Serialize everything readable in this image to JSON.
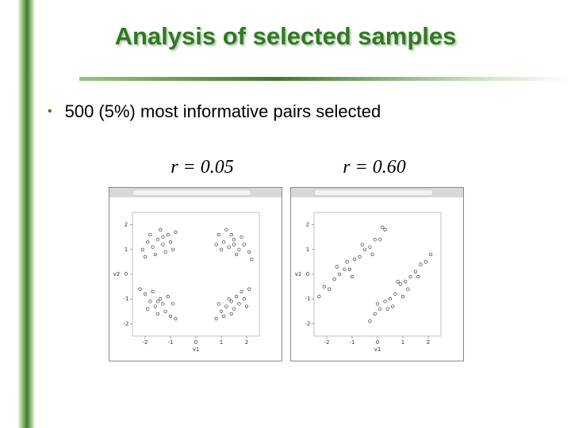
{
  "header": {
    "title": "Analysis of selected samples"
  },
  "bullet": "500 (5%) most informative pairs selected",
  "plots": [
    {
      "label": "r = 0.05",
      "xlim": [
        -2.5,
        2.5
      ],
      "ylim": [
        -2.5,
        2.5
      ],
      "xticks": [
        -2,
        -1,
        0,
        1,
        2
      ],
      "yticks": [
        -2,
        -1,
        0,
        1,
        2
      ],
      "xlabel": "v1",
      "ylabel": "v2",
      "points": [
        [
          -2.1,
          1.0
        ],
        [
          -1.9,
          1.3
        ],
        [
          -1.7,
          1.1
        ],
        [
          -1.5,
          1.4
        ],
        [
          -1.3,
          1.2
        ],
        [
          -1.1,
          1.6
        ],
        [
          -1.6,
          0.8
        ],
        [
          -1.2,
          0.9
        ],
        [
          -1.0,
          1.3
        ],
        [
          -0.8,
          1.7
        ],
        [
          -1.4,
          1.8
        ],
        [
          -2.0,
          0.7
        ],
        [
          -1.8,
          1.6
        ],
        [
          -0.9,
          1.0
        ],
        [
          -1.3,
          1.5
        ],
        [
          0.9,
          1.6
        ],
        [
          1.1,
          1.3
        ],
        [
          1.3,
          1.1
        ],
        [
          1.5,
          1.4
        ],
        [
          1.7,
          1.0
        ],
        [
          1.9,
          1.2
        ],
        [
          1.2,
          1.8
        ],
        [
          1.6,
          0.8
        ],
        [
          2.1,
          0.9
        ],
        [
          1.4,
          1.6
        ],
        [
          0.8,
          1.2
        ],
        [
          1.8,
          1.5
        ],
        [
          2.2,
          0.6
        ],
        [
          1.0,
          1.0
        ],
        [
          1.5,
          1.2
        ],
        [
          -2.0,
          -0.8
        ],
        [
          -1.8,
          -1.1
        ],
        [
          -1.6,
          -1.3
        ],
        [
          -1.4,
          -1.0
        ],
        [
          -1.2,
          -1.5
        ],
        [
          -1.0,
          -1.7
        ],
        [
          -1.7,
          -0.7
        ],
        [
          -1.5,
          -1.6
        ],
        [
          -0.9,
          -1.2
        ],
        [
          -2.2,
          -0.6
        ],
        [
          -1.3,
          -1.2
        ],
        [
          -1.1,
          -0.9
        ],
        [
          -1.9,
          -1.4
        ],
        [
          -0.8,
          -1.8
        ],
        [
          -1.5,
          -1.1
        ],
        [
          0.8,
          -1.8
        ],
        [
          1.0,
          -1.5
        ],
        [
          1.2,
          -1.3
        ],
        [
          1.4,
          -1.1
        ],
        [
          1.6,
          -0.9
        ],
        [
          1.8,
          -0.7
        ],
        [
          1.1,
          -1.7
        ],
        [
          1.5,
          -1.4
        ],
        [
          1.9,
          -1.0
        ],
        [
          2.1,
          -0.6
        ],
        [
          1.3,
          -1.0
        ],
        [
          0.9,
          -1.2
        ],
        [
          1.7,
          -1.2
        ],
        [
          2.0,
          -1.3
        ],
        [
          1.4,
          -1.6
        ]
      ]
    },
    {
      "label": "r = 0.60",
      "xlim": [
        -2.5,
        2.5
      ],
      "ylim": [
        -2.5,
        2.5
      ],
      "xticks": [
        -2,
        -1,
        0,
        1,
        2
      ],
      "yticks": [
        -2,
        -1,
        0,
        1,
        2
      ],
      "xlabel": "v1",
      "ylabel": "v2",
      "points": [
        [
          -2.3,
          -0.9
        ],
        [
          -2.1,
          -0.5
        ],
        [
          -1.9,
          -0.6
        ],
        [
          -1.7,
          -0.2
        ],
        [
          -1.5,
          0.0
        ],
        [
          -1.3,
          0.2
        ],
        [
          -1.1,
          0.2
        ],
        [
          -0.9,
          0.6
        ],
        [
          -0.7,
          0.7
        ],
        [
          -0.5,
          1.0
        ],
        [
          -0.3,
          1.1
        ],
        [
          -0.1,
          1.4
        ],
        [
          0.1,
          1.4
        ],
        [
          0.3,
          1.8
        ],
        [
          -1.6,
          0.3
        ],
        [
          -1.0,
          -0.1
        ],
        [
          -0.6,
          1.2
        ],
        [
          -1.2,
          0.5
        ],
        [
          -0.2,
          0.8
        ],
        [
          0.2,
          1.9
        ],
        [
          -0.3,
          -1.9
        ],
        [
          -0.1,
          -1.6
        ],
        [
          0.1,
          -1.4
        ],
        [
          0.3,
          -1.1
        ],
        [
          0.5,
          -1.0
        ],
        [
          0.7,
          -0.8
        ],
        [
          0.9,
          -0.4
        ],
        [
          1.1,
          -0.3
        ],
        [
          1.3,
          -0.1
        ],
        [
          1.5,
          0.1
        ],
        [
          1.7,
          0.4
        ],
        [
          1.9,
          0.5
        ],
        [
          2.1,
          0.8
        ],
        [
          0.4,
          -1.4
        ],
        [
          0.8,
          -0.3
        ],
        [
          1.2,
          -0.6
        ],
        [
          0.0,
          -1.2
        ],
        [
          1.6,
          -0.1
        ],
        [
          0.6,
          -1.3
        ],
        [
          1.0,
          -0.9
        ]
      ]
    }
  ]
}
